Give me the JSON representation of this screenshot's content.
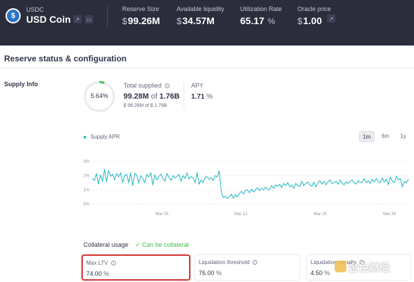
{
  "header": {
    "asset_symbol": "USDC",
    "asset_name": "USD Coin",
    "stats": [
      {
        "label": "Reserve Size",
        "prefix": "$",
        "value": "99.26M",
        "suffix": ""
      },
      {
        "label": "Available liquidity",
        "prefix": "$",
        "value": "34.57M",
        "suffix": ""
      },
      {
        "label": "Utilization Rate",
        "prefix": "",
        "value": "65.17",
        "suffix": "%"
      },
      {
        "label": "Oracle price",
        "prefix": "$",
        "value": "1.00",
        "suffix": ""
      }
    ]
  },
  "section": {
    "title": "Reserve status & configuration"
  },
  "supply_info": {
    "label": "Supply Info",
    "ring_percent_label": "5.64%",
    "ring_fraction": 0.0564,
    "total_supplied_label": "Total supplied",
    "total_supplied_value": "99.28M",
    "of_word": "of",
    "total_cap": "1.76B",
    "total_supplied_usd": "$ 99.26M of $ 1.76B",
    "apy_label": "APY",
    "apy_value": "1.71",
    "apy_suffix": "%"
  },
  "chart_legend": "Supply APR",
  "range_tabs": [
    {
      "label": "1m",
      "active": true
    },
    {
      "label": "6m",
      "active": false
    },
    {
      "label": "1y",
      "active": false
    }
  ],
  "chart_data": {
    "type": "line",
    "series": [
      {
        "name": "Supply APR",
        "color": "#2ebac6",
        "values": [
          1.8,
          1.65,
          2.15,
          1.4,
          2.05,
          1.6,
          2.45,
          1.55,
          2.35,
          1.95,
          2.1,
          1.7,
          2.15,
          1.9,
          2.2,
          1.5,
          2.0,
          2.1,
          1.5,
          2.2,
          1.3,
          2.15,
          2.05,
          1.45,
          2.0,
          1.8,
          1.5,
          2.1,
          1.9,
          2.2,
          1.35,
          2.05,
          1.7,
          1.95,
          2.1,
          1.8,
          1.6,
          2.15,
          1.9,
          1.65,
          2.0,
          1.85,
          1.95,
          2.1,
          1.6,
          2.0,
          1.8,
          2.2,
          1.75,
          1.95,
          1.85,
          1.5,
          2.2,
          1.4,
          1.7,
          1.5,
          1.9,
          1.9,
          1.75,
          1.85,
          1.65,
          2.0,
          1.9,
          2.35,
          0.85,
          0.45,
          0.55,
          0.4,
          0.5,
          0.7,
          0.4,
          0.65,
          0.5,
          0.75,
          0.9,
          0.7,
          0.95,
          1.0,
          0.8,
          1.05,
          0.85,
          1.0,
          1.15,
          0.95,
          1.1,
          1.0,
          1.2,
          1.05,
          1.0,
          1.3,
          1.1,
          1.35,
          1.25,
          1.4,
          1.15,
          1.45,
          1.3,
          1.5,
          1.2,
          1.35,
          1.1,
          1.45,
          1.3,
          1.25,
          1.6,
          1.3,
          1.45,
          1.55,
          1.35,
          1.25,
          1.55,
          1.2,
          1.5,
          1.65,
          1.4,
          1.6,
          1.35,
          1.55,
          1.7,
          1.45,
          1.5,
          1.6,
          1.4,
          1.7,
          1.5,
          1.35,
          1.55,
          1.45,
          1.6,
          1.7,
          1.5,
          1.4,
          1.65,
          1.5,
          1.55,
          1.8,
          1.5,
          1.65,
          1.45,
          1.75,
          1.55,
          1.8,
          1.6,
          1.5,
          1.85,
          1.55,
          1.75,
          1.35,
          1.9,
          1.6,
          1.5,
          1.95,
          1.7,
          1.8,
          1.2,
          1.6,
          1.5,
          1.75
        ]
      }
    ],
    "yticks": [
      "3%",
      "2%",
      "1%",
      "0%"
    ],
    "ylim": [
      0,
      3
    ],
    "xticks": [
      {
        "label": "Mar 05",
        "pos": 0.22
      },
      {
        "label": "Mar 12",
        "pos": 0.47
      },
      {
        "label": "Mar 19",
        "pos": 0.72
      },
      {
        "label": "Mar 26",
        "pos": 0.94
      }
    ]
  },
  "collateral": {
    "label": "Collateral usage",
    "status": "✓ Can be collateral",
    "params": [
      {
        "label": "Max LTV",
        "value": "74.00",
        "suffix": "%"
      },
      {
        "label": "Liquidation threshold",
        "value": "76.00",
        "suffix": "%"
      },
      {
        "label": "Liquidation penalty",
        "value": "4.50",
        "suffix": "%"
      }
    ]
  },
  "watermark": "金色财经"
}
